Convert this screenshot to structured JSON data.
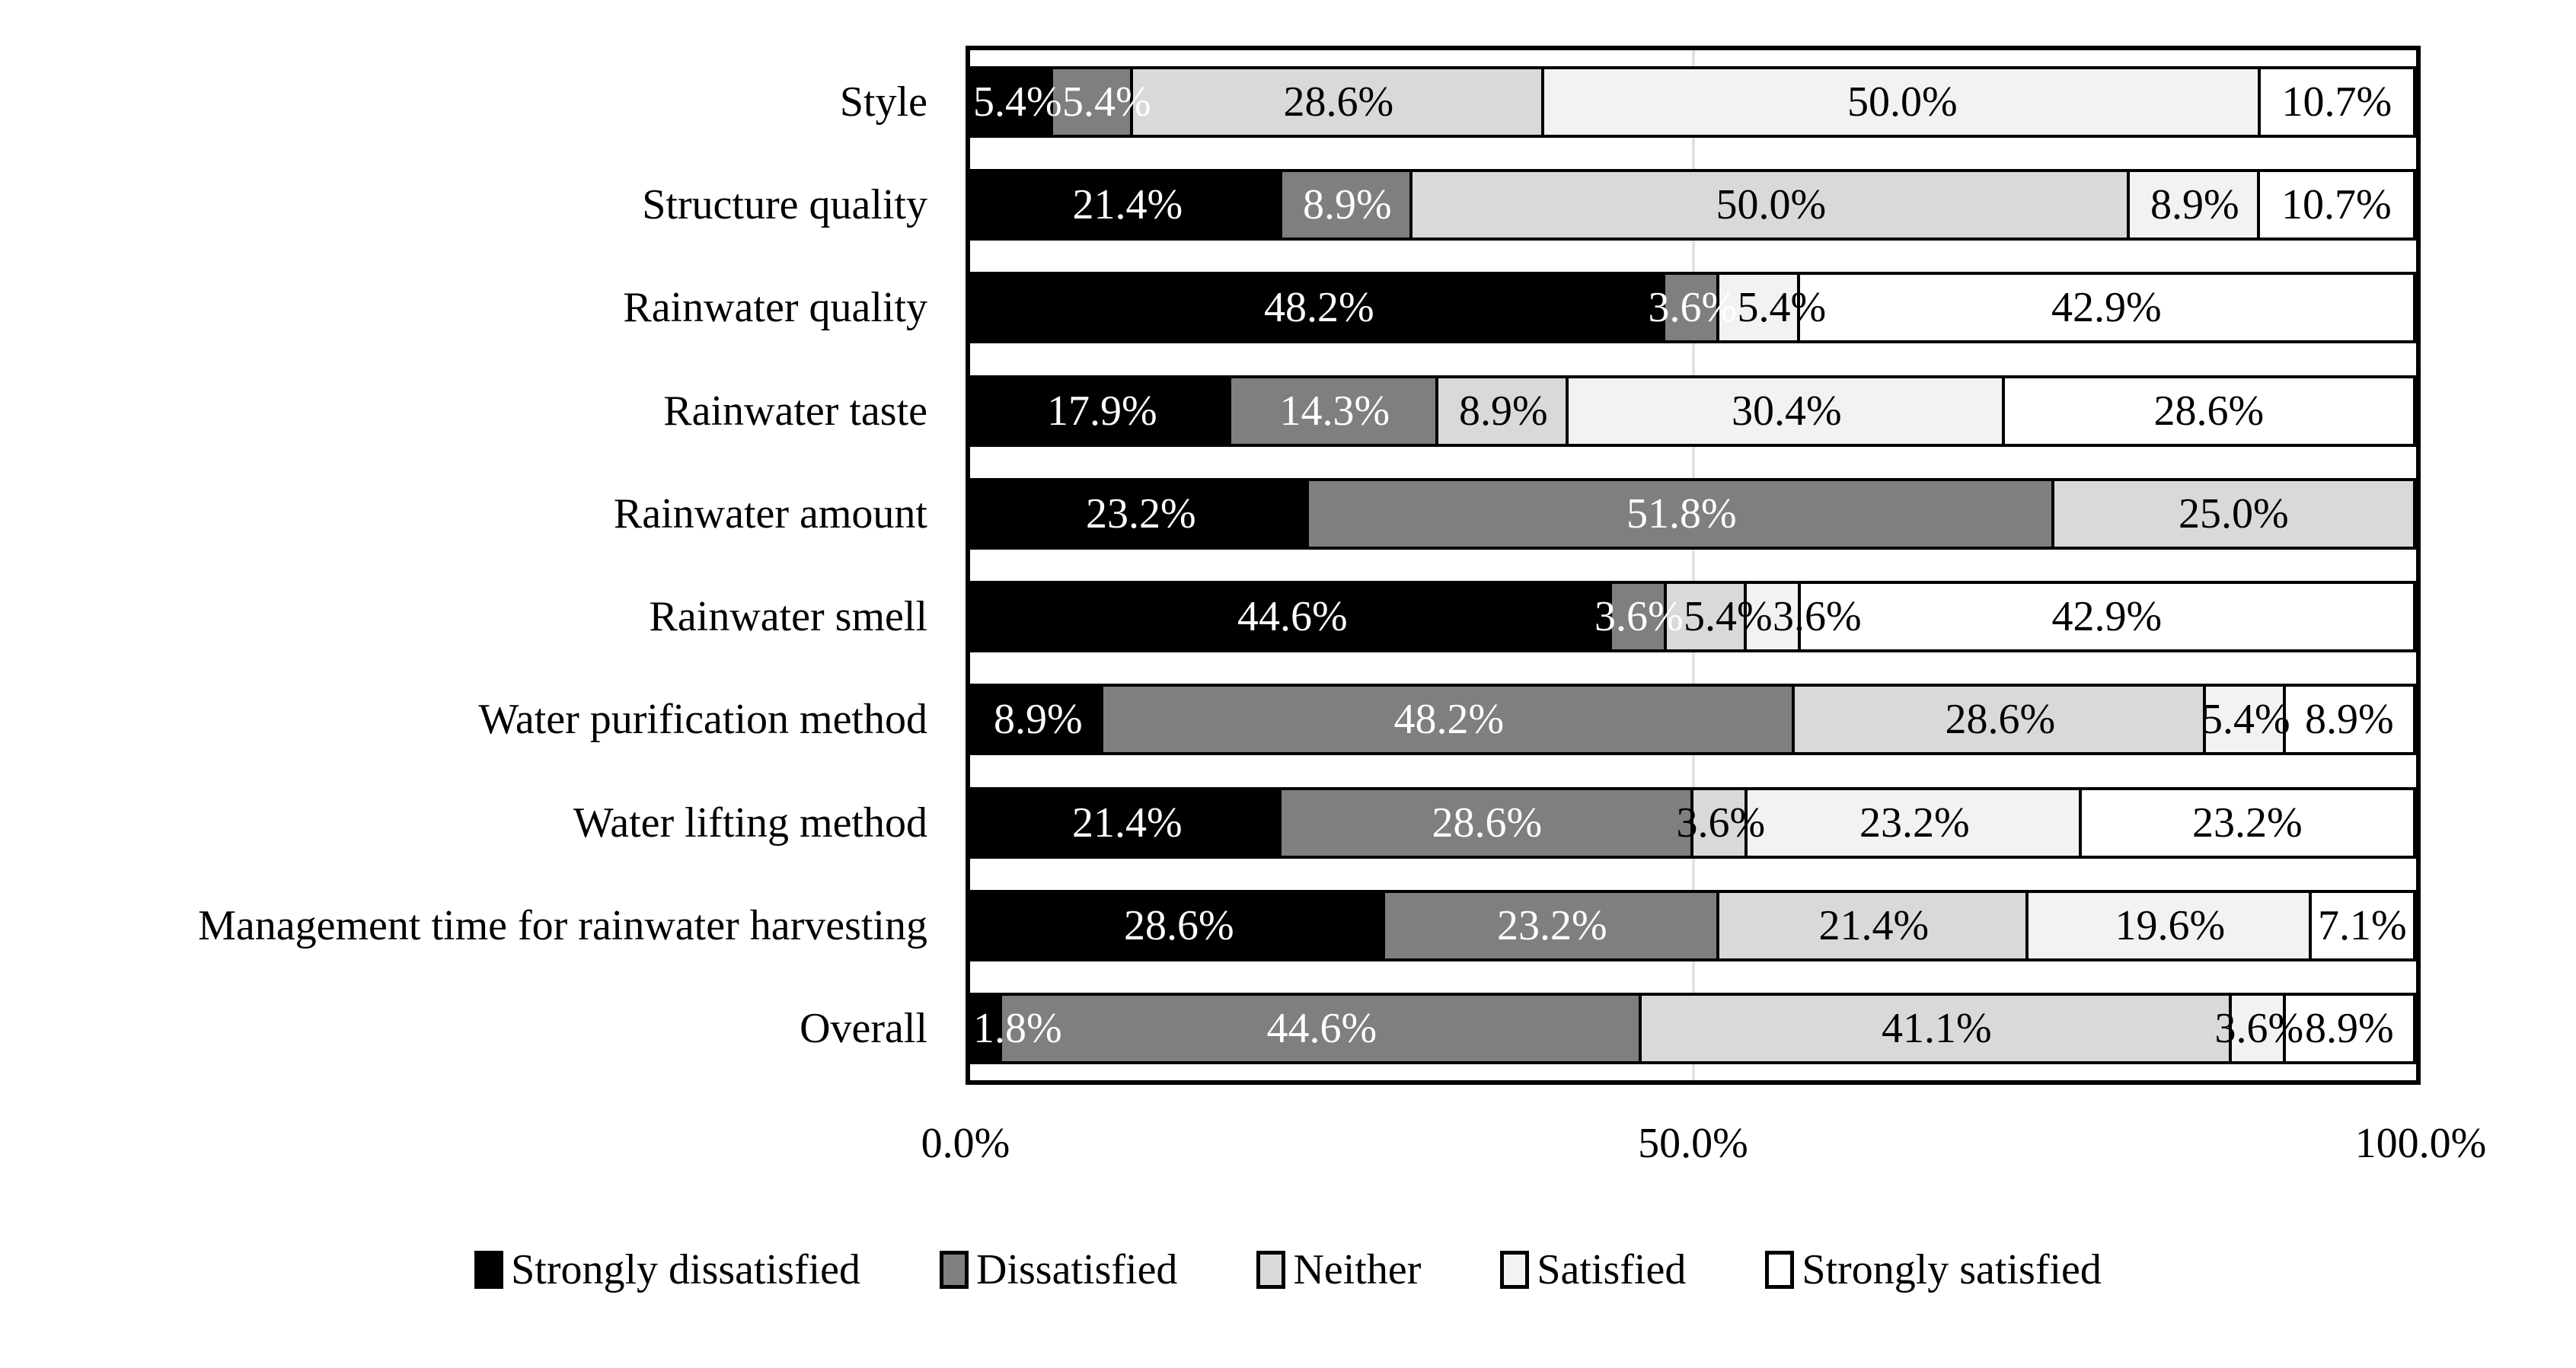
{
  "figure": {
    "background": "#ffffff"
  },
  "chart_data": {
    "type": "bar",
    "subtype": "horizontal_stacked_100pct",
    "title": "",
    "categories": [
      "Style",
      "Structure quality",
      "Rainwater quality",
      "Rainwater taste",
      "Rainwater amount",
      "Rainwater smell",
      "Water purification method",
      "Water lifting method",
      "Management time for rainwater harvesting",
      "Overall"
    ],
    "series": [
      {
        "name": "Strongly dissatisfied",
        "color": "#000000",
        "label_color": "#ffffff",
        "values": [
          5.4,
          21.4,
          48.2,
          17.9,
          23.2,
          44.6,
          8.9,
          21.4,
          28.6,
          1.8
        ]
      },
      {
        "name": "Dissatisfied",
        "color": "#7f7f7f",
        "label_color": "#ffffff",
        "values": [
          5.4,
          8.9,
          3.6,
          14.3,
          51.8,
          3.6,
          48.2,
          28.6,
          23.2,
          44.6
        ]
      },
      {
        "name": "Neither",
        "color": "#d9d9d9",
        "label_color": "#000000",
        "values": [
          28.6,
          50.0,
          0,
          8.9,
          25.0,
          5.4,
          28.6,
          3.6,
          21.4,
          41.1
        ]
      },
      {
        "name": "Satisfied",
        "color": "#f2f2f2",
        "label_color": "#000000",
        "values": [
          50.0,
          8.9,
          5.4,
          30.4,
          0,
          3.6,
          5.4,
          23.2,
          19.6,
          3.6
        ]
      },
      {
        "name": "Strongly satisfied",
        "color": "#ffffff",
        "label_color": "#000000",
        "values": [
          10.7,
          10.7,
          42.9,
          28.6,
          0,
          42.9,
          8.9,
          23.2,
          7.1,
          8.9
        ]
      }
    ],
    "x_axis": {
      "range": [
        0,
        100
      ],
      "ticks": [
        {
          "label": "0.0%",
          "pos": 0
        },
        {
          "label": "50.0%",
          "pos": 50
        },
        {
          "label": "100.0%",
          "pos": 100
        }
      ],
      "gridline_at": 50,
      "gridline_color": "#e2e2e2"
    },
    "label_format": "one_decimal_percent",
    "legend_position": "bottom",
    "frame_color": "#000000"
  }
}
